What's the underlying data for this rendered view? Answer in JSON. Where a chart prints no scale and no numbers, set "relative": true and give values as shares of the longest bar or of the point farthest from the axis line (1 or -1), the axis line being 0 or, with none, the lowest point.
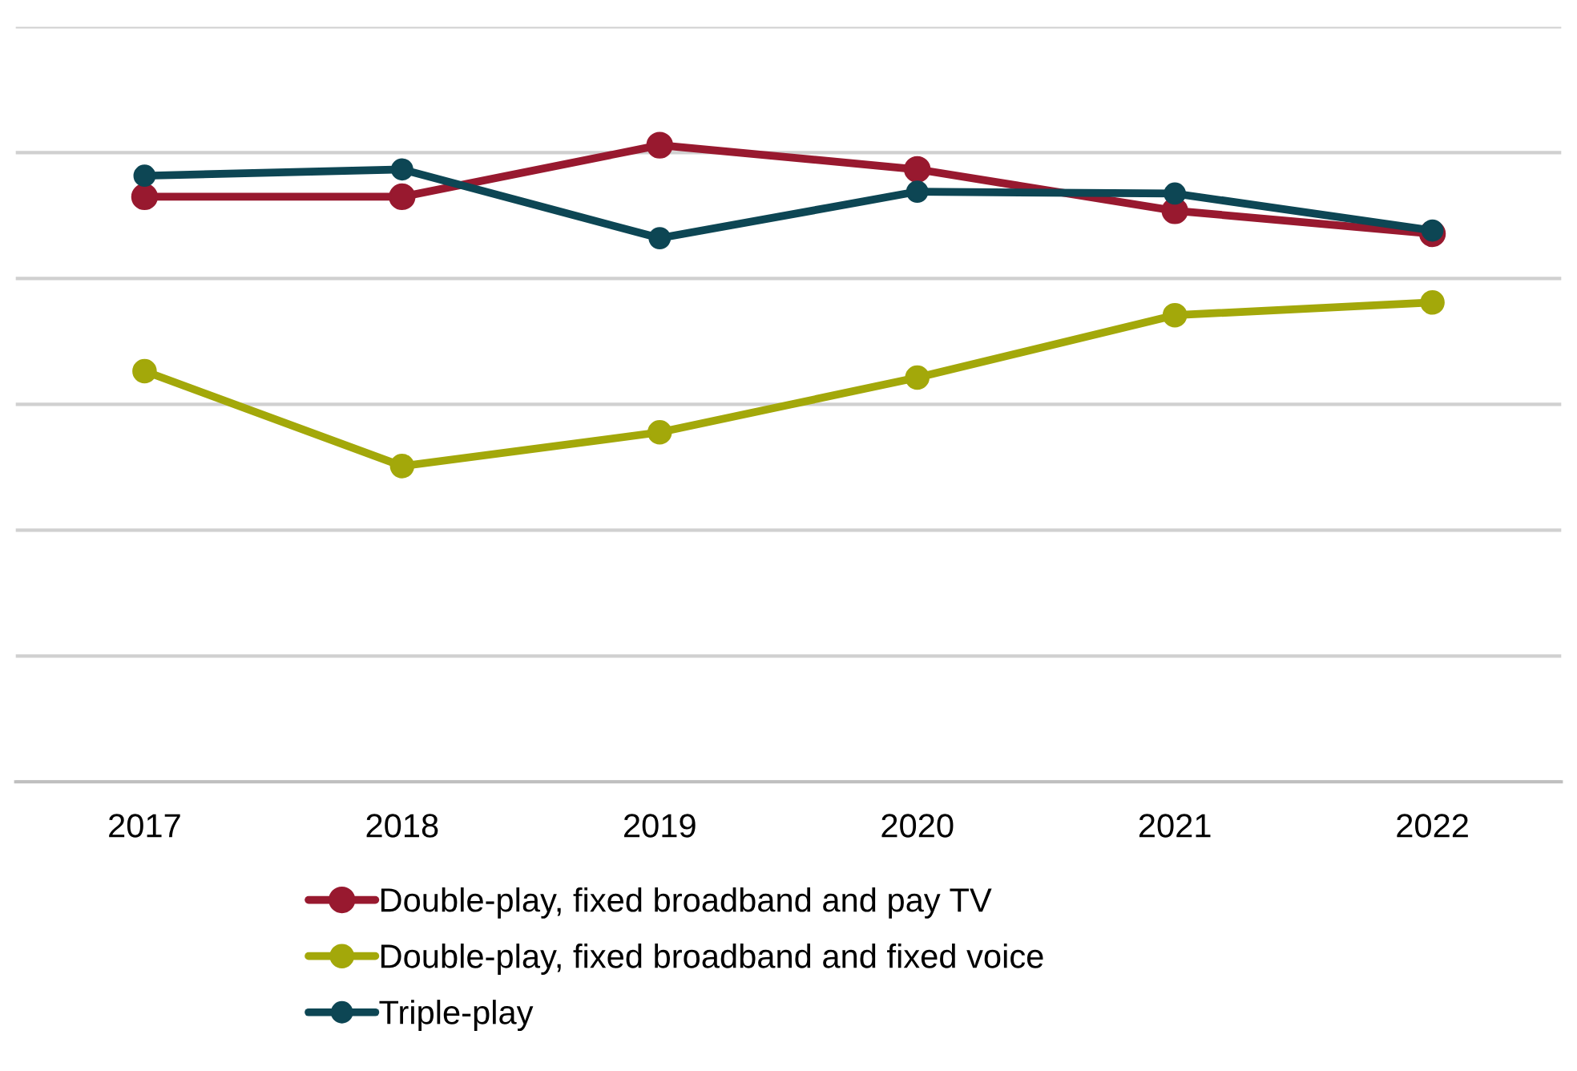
{
  "chart_data": {
    "type": "line",
    "relative": true,
    "categories": [
      "2017",
      "2018",
      "2019",
      "2020",
      "2021",
      "2022"
    ],
    "series": [
      {
        "name": "Double-play, fixed broadband and pay TV",
        "color": "#98192f",
        "values": [
          0.919,
          0.919,
          1,
          0.962,
          0.897,
          0.861
        ]
      },
      {
        "name": "Double-play, fixed broadband and fixed voice",
        "color": "#a3a80a",
        "values": [
          0.645,
          0.496,
          0.549,
          0.635,
          0.733,
          0.753
        ]
      },
      {
        "name": "Triple-play",
        "color": "#0d4654",
        "values": [
          0.952,
          0.962,
          0.854,
          0.927,
          0.924,
          0.866
        ]
      }
    ],
    "grid": "y",
    "legend": "bottom",
    "marker": "circle",
    "line_style": "solid",
    "tick_labels": "x"
  }
}
